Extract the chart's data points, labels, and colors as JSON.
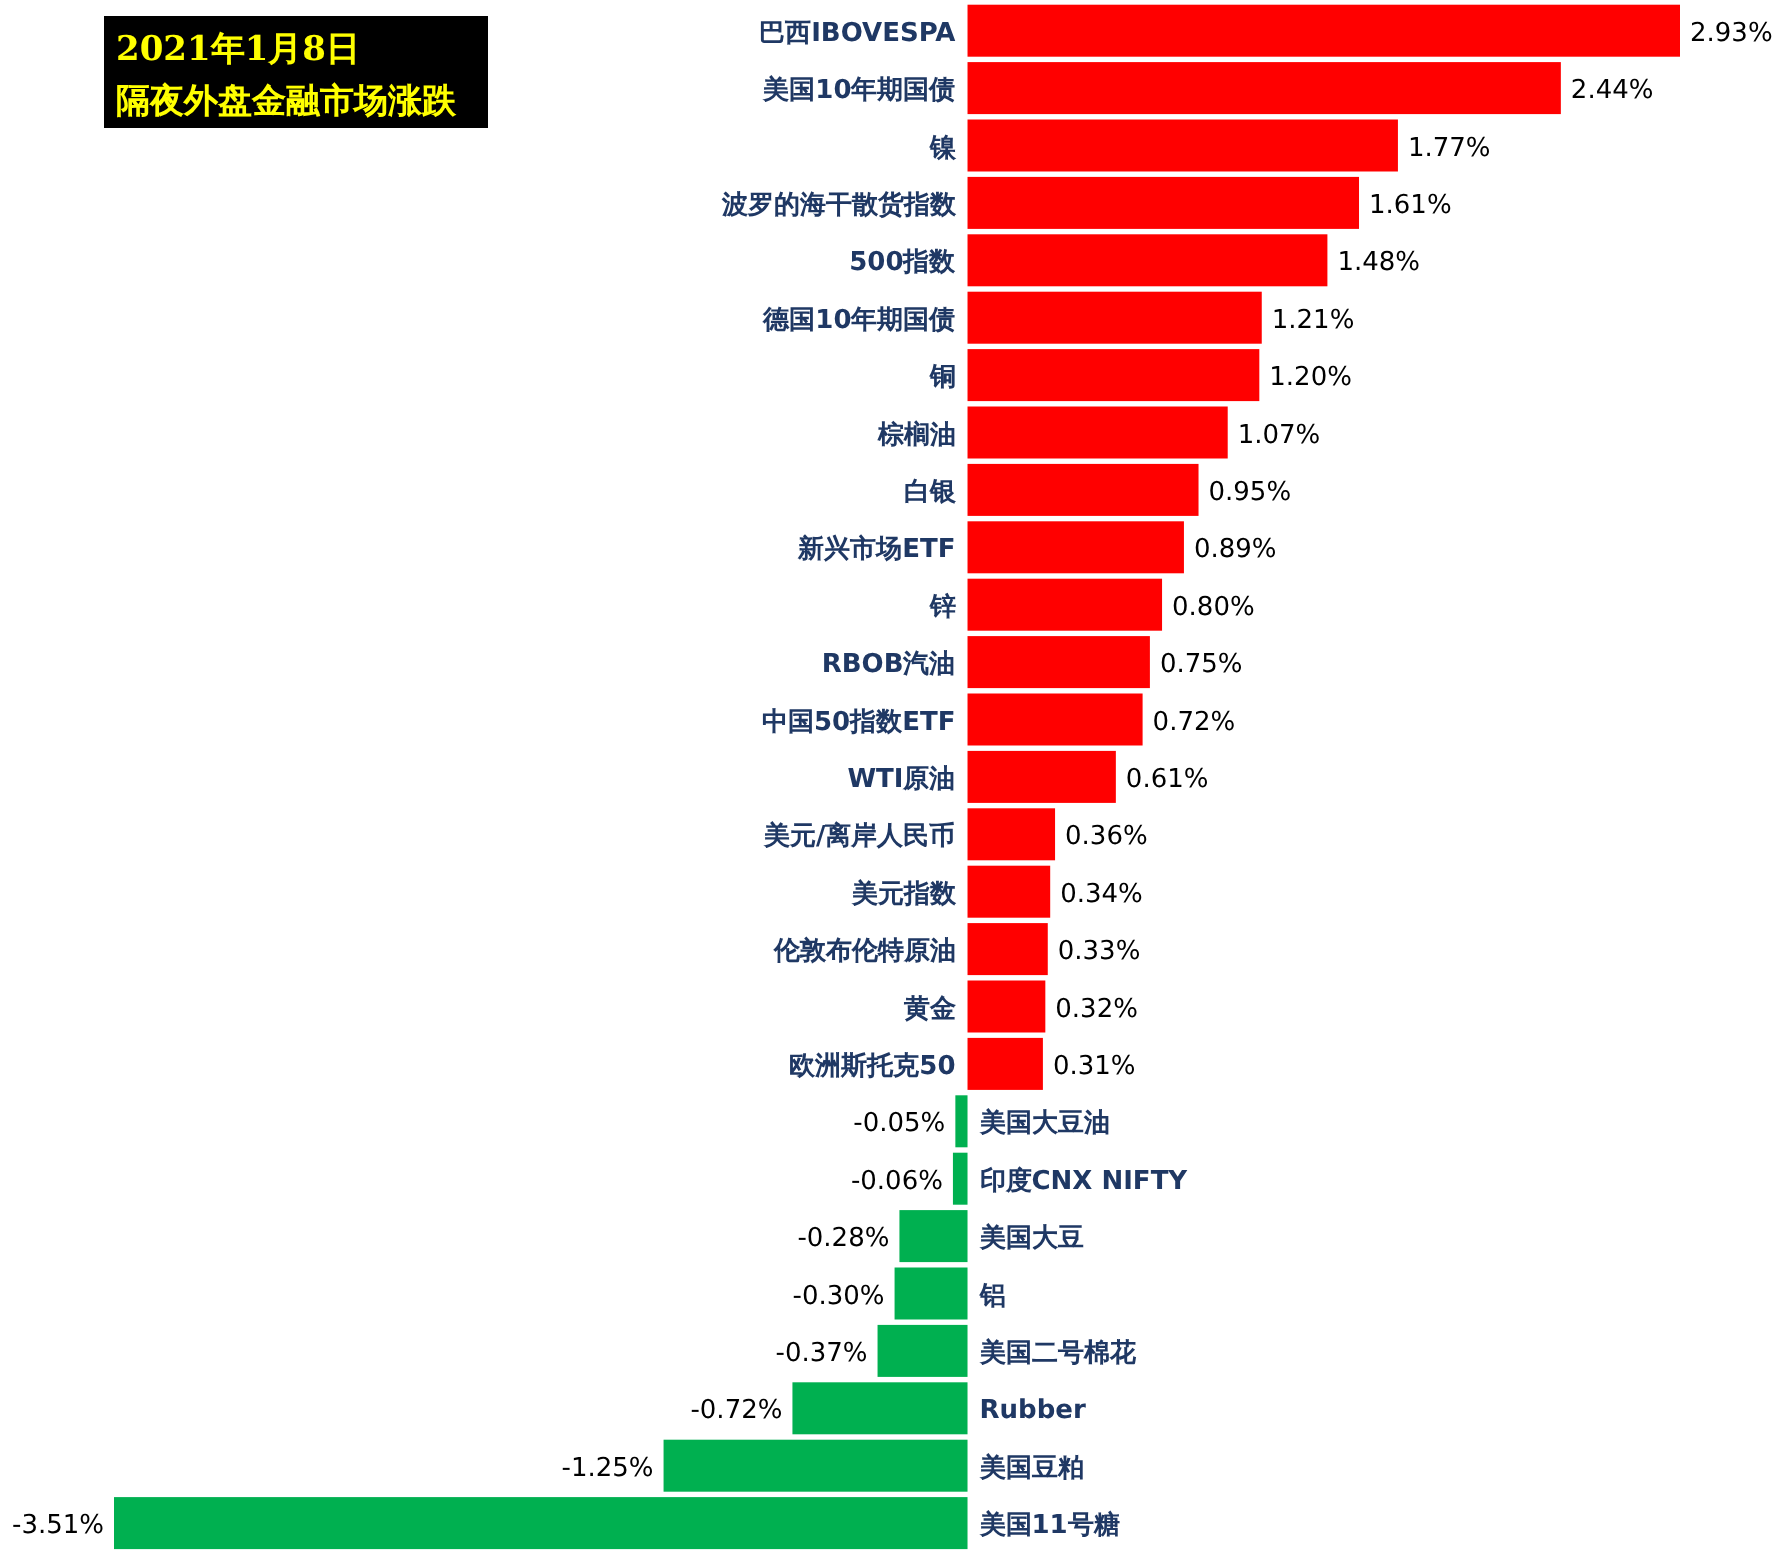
{
  "chart_data": {
    "type": "bar",
    "orientation": "horizontal",
    "title": "2021年1月8日",
    "subtitle": "隔夜外盘金融市场涨跌",
    "categories": [
      "巴西IBOVESPA",
      "美国10年期国债",
      "镍",
      "波罗的海干散货指数",
      "500指数",
      "德国10年期国债",
      "铜",
      "棕榈油",
      "白银",
      "新兴市场ETF",
      "锌",
      "RBOB汽油",
      "中国50指数ETF",
      "WTI原油",
      "美元/离岸人民币",
      "美元指数",
      "伦敦布伦特原油",
      "黄金",
      "欧洲斯托克50",
      "美国大豆油",
      "印度CNX NIFTY",
      "美国大豆",
      "铝",
      "美国二号棉花",
      "Rubber",
      "美国豆粕",
      "美国11号糖"
    ],
    "values": [
      2.93,
      2.44,
      1.77,
      1.61,
      1.48,
      1.21,
      1.2,
      1.07,
      0.95,
      0.89,
      0.8,
      0.75,
      0.72,
      0.61,
      0.36,
      0.34,
      0.33,
      0.32,
      0.31,
      -0.05,
      -0.06,
      -0.28,
      -0.3,
      -0.37,
      -0.72,
      -1.25,
      -3.51
    ],
    "value_labels": [
      "2.93%",
      "2.44%",
      "1.77%",
      "1.61%",
      "1.48%",
      "1.21%",
      "1.20%",
      "1.07%",
      "0.95%",
      "0.89%",
      "0.80%",
      "0.75%",
      "0.72%",
      "0.61%",
      "0.36%",
      "0.34%",
      "0.33%",
      "0.32%",
      "0.31%",
      "-0.05%",
      "-0.06%",
      "-0.28%",
      "-0.30%",
      "-0.37%",
      "-0.72%",
      "-1.25%",
      "-3.51%"
    ],
    "colors": [
      "#ff0000",
      "#ff0000",
      "#ff0000",
      "#ff0000",
      "#ff0000",
      "#ff0000",
      "#ff0000",
      "#ff0000",
      "#ff0000",
      "#ff0000",
      "#ff0000",
      "#ff0000",
      "#ff0000",
      "#ff0000",
      "#ff0000",
      "#ff0000",
      "#ff0000",
      "#ff0000",
      "#ff0000",
      "#00b050",
      "#00b050",
      "#00b050",
      "#00b050",
      "#00b050",
      "#00b050",
      "#00b050",
      "#00b050"
    ]
  }
}
